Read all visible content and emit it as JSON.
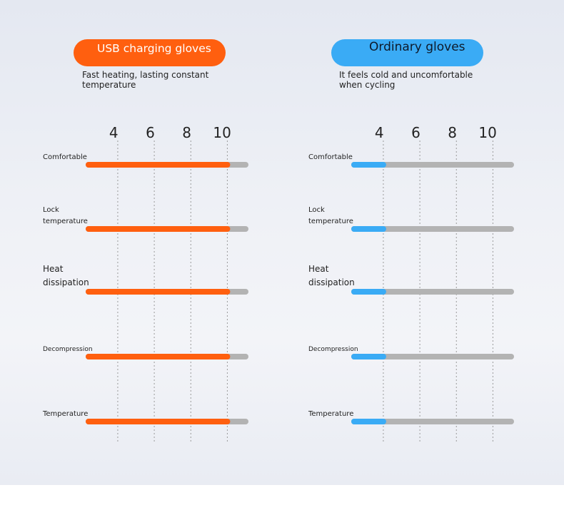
{
  "colors": {
    "usb": "#ff5f0f",
    "ordinary": "#3aabf5",
    "track": "#b3b3b3"
  },
  "chart_data": [
    {
      "type": "bar",
      "title": "USB charging gloves",
      "subtitle": "Fast heating, lasting constant temperature",
      "categories": [
        "Comfortable",
        "Lock temperature",
        "Heat dissipation",
        "Decompression",
        "Temperature"
      ],
      "xticks": [
        4,
        6,
        8,
        10
      ],
      "xlim": [
        2.4,
        11
      ],
      "values": [
        10,
        10,
        10,
        10,
        10
      ]
    },
    {
      "type": "bar",
      "title": "Ordinary gloves",
      "subtitle": "It feels cold and uncomfortable when cycling",
      "categories": [
        "Comfortable",
        "Lock temperature",
        "Heat dissipation",
        "Decompression",
        "Temperature"
      ],
      "xticks": [
        4,
        6,
        8,
        10
      ],
      "xlim": [
        2.4,
        11
      ],
      "values": [
        4,
        4,
        4,
        4,
        4
      ]
    }
  ]
}
